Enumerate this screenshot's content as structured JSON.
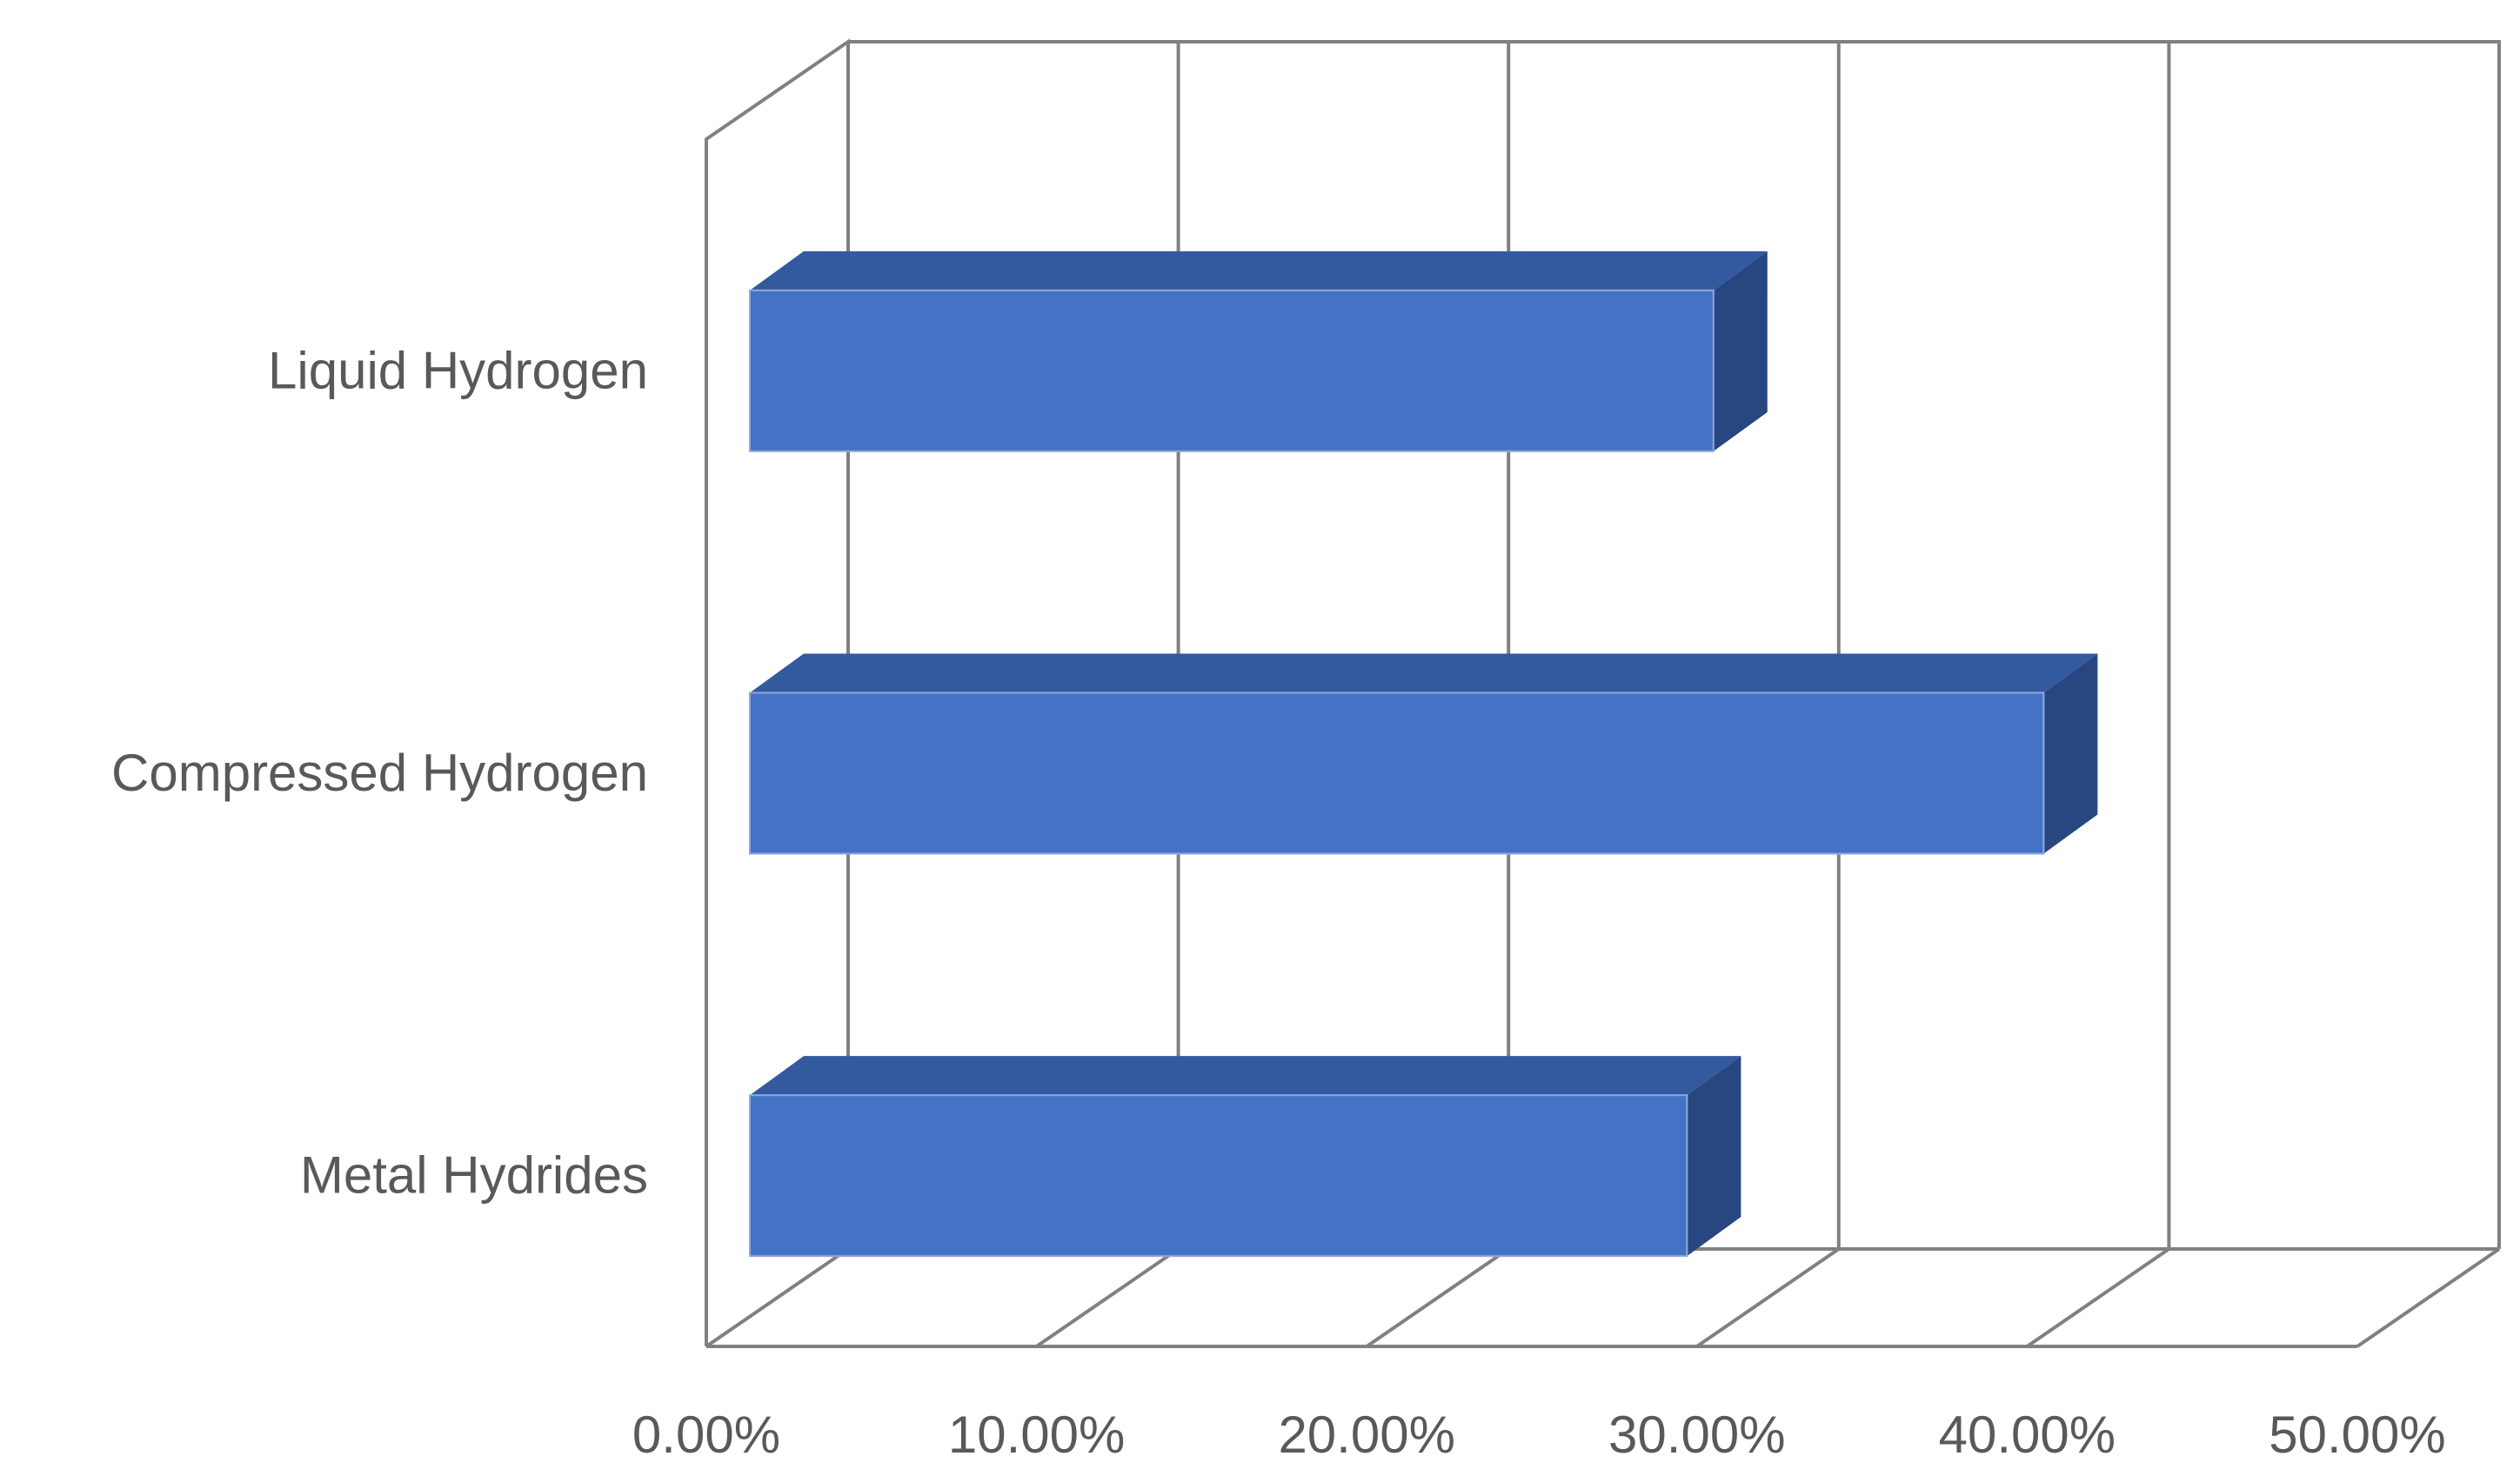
{
  "chart_data": {
    "type": "bar",
    "orientation": "horizontal",
    "three_d": true,
    "categories": [
      "Liquid Hydrogen",
      "Compressed Hydrogen",
      "Metal Hydrides"
    ],
    "series": [
      {
        "values": [
          30.5,
          40.5,
          29.7
        ]
      }
    ],
    "x_ticks": [
      "0.00%",
      "10.00%",
      "20.00%",
      "30.00%",
      "40.00%",
      "50.00%"
    ],
    "xlim": [
      0,
      50
    ],
    "value_unit": "%",
    "grid": true,
    "legend": "none",
    "colors": {
      "bar_front": "#4472C4",
      "bar_top": "#335A9E",
      "bar_side": "#284780",
      "grid": "#808080",
      "label": "#595959"
    }
  }
}
